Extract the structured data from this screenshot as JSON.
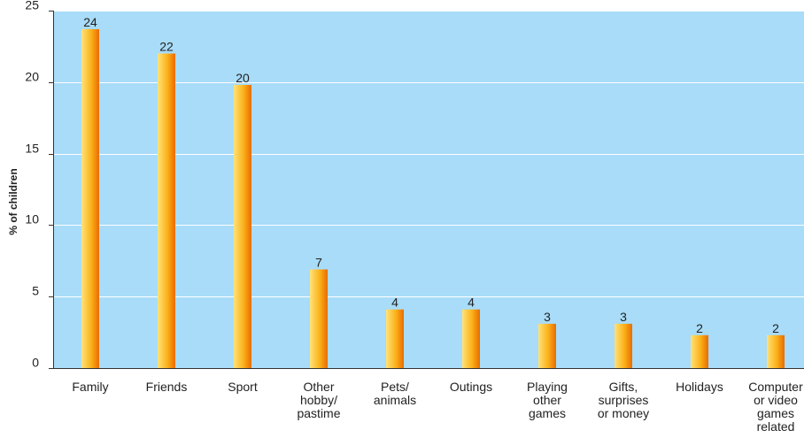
{
  "chart_data": {
    "type": "bar",
    "title": "",
    "xlabel": "",
    "ylabel": "% of children",
    "ylim": [
      0,
      25
    ],
    "yticks": [
      0,
      5,
      10,
      15,
      20,
      25
    ],
    "grid": true,
    "categories": [
      [
        "Family"
      ],
      [
        "Friends"
      ],
      [
        "Sport"
      ],
      [
        "Other",
        "hobby/",
        "pastime"
      ],
      [
        "Pets/",
        "animals"
      ],
      [
        "Outings"
      ],
      [
        "Playing",
        "other",
        "games"
      ],
      [
        "Gifts,",
        "surprises",
        "or money"
      ],
      [
        "Holidays"
      ],
      [
        "Computer",
        "or video",
        "games",
        "related"
      ]
    ],
    "values": [
      23.7,
      22,
      19.8,
      6.9,
      4.1,
      4.1,
      3.1,
      3.1,
      2.3,
      2.3
    ],
    "value_labels": [
      "24",
      "22",
      "20",
      "7",
      "4",
      "4",
      "3",
      "3",
      "2",
      "2"
    ],
    "colors": {
      "plot_background": "#a8dcf8",
      "gridline": "#ffffff",
      "bar_light": "#ffe27a",
      "bar_mid": "#fbb21a",
      "bar_dark": "#e96b00"
    }
  }
}
